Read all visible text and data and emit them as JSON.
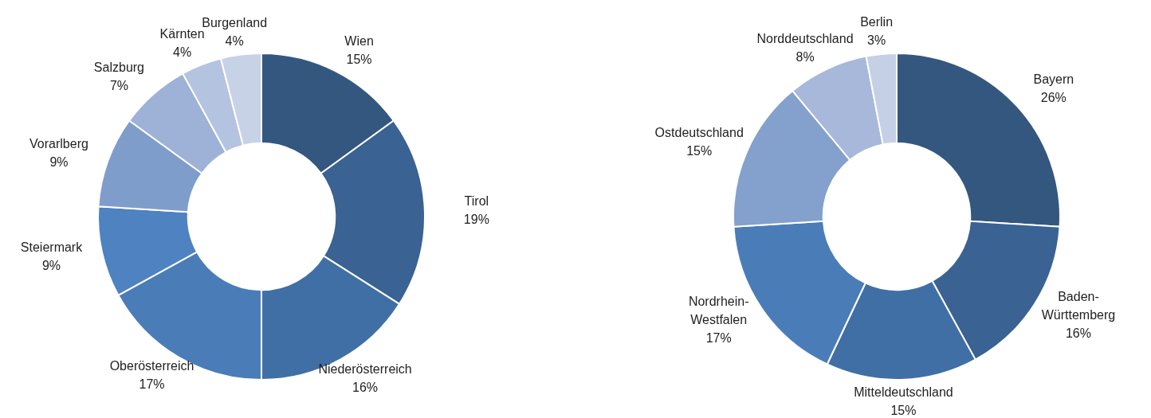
{
  "chart_data": [
    {
      "type": "donut",
      "categories": [
        "Wien",
        "Tirol",
        "Niederösterreich",
        "Oberösterreich",
        "Steiermark",
        "Vorarlberg",
        "Salzburg",
        "Kärnten",
        "Burgenland"
      ],
      "values": [
        15,
        19,
        16,
        17,
        9,
        9,
        7,
        4,
        4
      ],
      "value_labels": [
        "15%",
        "19%",
        "16%",
        "17%",
        "9%",
        "9%",
        "7%",
        "4%",
        "4%"
      ],
      "colors": [
        "#34577f",
        "#3a6292",
        "#406fa5",
        "#4a7db8",
        "#4e82c0",
        "#7f9dcb",
        "#9db2d6",
        "#b4c3e0",
        "#c8d2e6"
      ]
    },
    {
      "type": "donut",
      "categories": [
        "Bayern",
        "Baden-Württemberg",
        "Mitteldeutschland",
        "Nordrhein-Westfalen",
        "Ostdeutschland",
        "Norddeutschland",
        "Berlin"
      ],
      "values": [
        26,
        16,
        15,
        17,
        15,
        8,
        3
      ],
      "value_labels": [
        "26%",
        "16%",
        "15%",
        "17%",
        "15%",
        "8%",
        "3%"
      ],
      "colors": [
        "#34577f",
        "#3a6292",
        "#406fa5",
        "#4a7db8",
        "#84a0cc",
        "#a7b8da",
        "#c5d0e6"
      ]
    }
  ]
}
